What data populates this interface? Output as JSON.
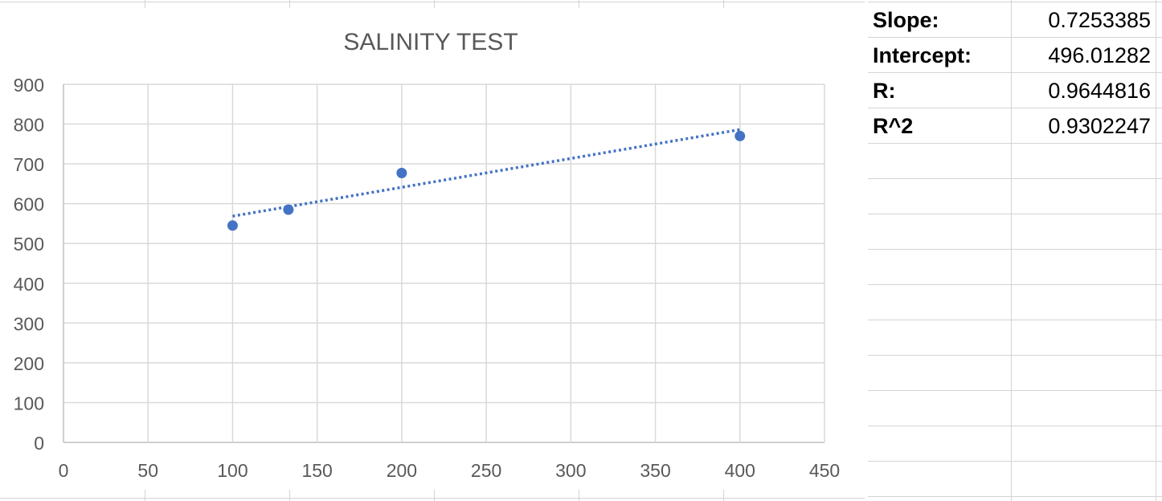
{
  "chart_data": {
    "type": "scatter",
    "title": "SALINITY TEST",
    "xlabel": "",
    "ylabel": "",
    "xlim": [
      0,
      450
    ],
    "ylim": [
      0,
      900
    ],
    "x_ticks": [
      0,
      50,
      100,
      150,
      200,
      250,
      300,
      350,
      400,
      450
    ],
    "y_ticks": [
      0,
      100,
      200,
      300,
      400,
      500,
      600,
      700,
      800,
      900
    ],
    "grid": true,
    "legend": "none",
    "series": [
      {
        "points": [
          {
            "x": 100,
            "y": 545
          },
          {
            "x": 133,
            "y": 585
          },
          {
            "x": 200,
            "y": 677
          },
          {
            "x": 400,
            "y": 770
          }
        ],
        "color": "#4472c4"
      }
    ],
    "trendline": {
      "type": "linear",
      "style": "dotted",
      "color": "#4472c4",
      "slope": 0.7253385,
      "intercept": 496.01282,
      "x_range": [
        100,
        400
      ]
    }
  },
  "stats": [
    {
      "label": "Slope:",
      "value": "0.7253385"
    },
    {
      "label": "Intercept:",
      "value": "496.01282"
    },
    {
      "label": "R:",
      "value": "0.9644816"
    },
    {
      "label": "R^2",
      "value": "0.9302247"
    }
  ],
  "colors": {
    "point": "#4472c4",
    "gridline": "#d9d9d9",
    "axis_text": "#595959"
  }
}
